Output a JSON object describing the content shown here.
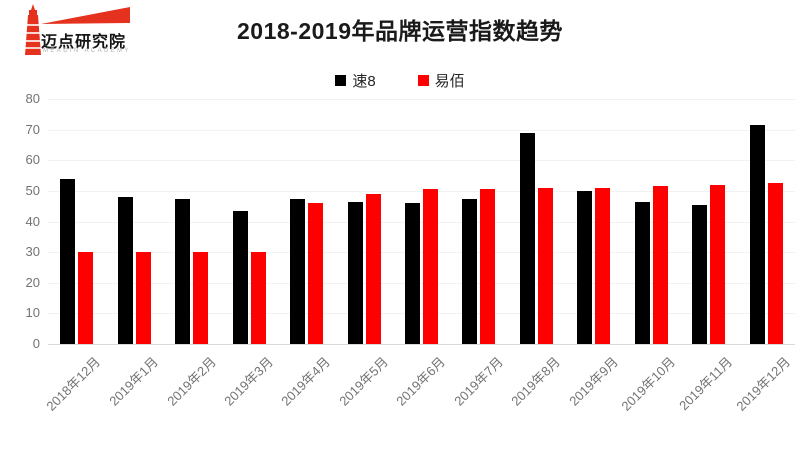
{
  "logo": {
    "brand": "迈点研究院",
    "sub": "MEADIN ACADEMY",
    "color": "#e5321e"
  },
  "title": "2018-2019年品牌运营指数趋势",
  "chart_data": {
    "type": "bar",
    "title": "2018-2019年品牌运营指数趋势",
    "categories": [
      "2018年12月",
      "2019年1月",
      "2019年2月",
      "2019年3月",
      "2019年4月",
      "2019年5月",
      "2019年6月",
      "2019年7月",
      "2019年8月",
      "2019年9月",
      "2019年10月",
      "2019年11月",
      "2019年12月"
    ],
    "series": [
      {
        "name": "速8",
        "color": "#000000",
        "values": [
          54,
          48,
          47.5,
          43.5,
          47.5,
          46.5,
          46,
          47.5,
          69,
          50,
          46.5,
          45.5,
          71.5
        ]
      },
      {
        "name": "易佰",
        "color": "#ff0000",
        "values": [
          30,
          30,
          30,
          30,
          46,
          49,
          50.5,
          50.5,
          51,
          51,
          51.5,
          52,
          52.5
        ]
      }
    ],
    "xlabel": "",
    "ylabel": "",
    "ylim": [
      0,
      80
    ],
    "yticks": [
      0,
      10,
      20,
      30,
      40,
      50,
      60,
      70,
      80
    ],
    "grid": true,
    "legend_position": "top",
    "gridline_color": "#f2f2f2",
    "axis_label_color": "#737373"
  }
}
